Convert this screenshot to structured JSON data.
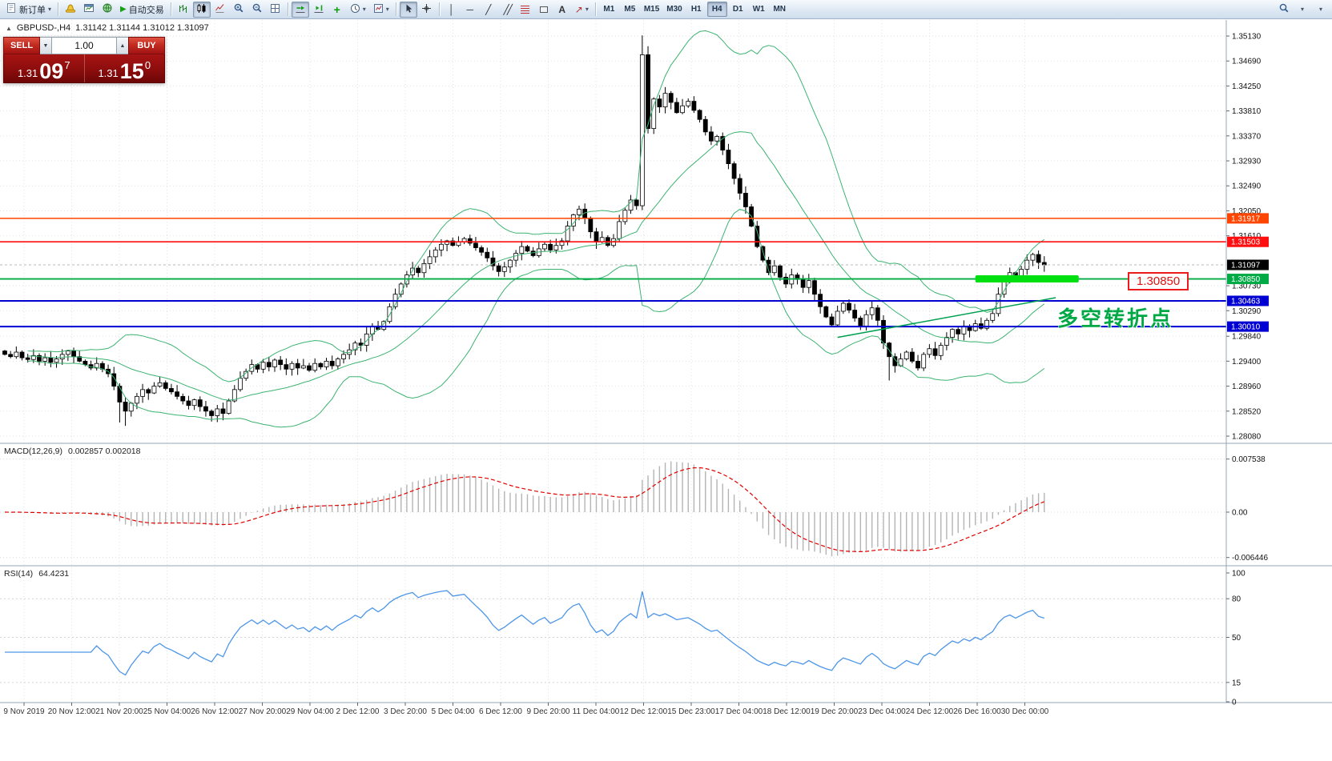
{
  "toolbar": {
    "new_order_label": "新订单",
    "autotrading_label": "自动交易",
    "timeframes": [
      "M1",
      "M5",
      "M15",
      "M30",
      "H1",
      "H4",
      "D1",
      "W1",
      "MN"
    ],
    "active_timeframe": "H4"
  },
  "trade_widget": {
    "sell_label": "SELL",
    "buy_label": "BUY",
    "lot_value": "1.00",
    "sell_price": {
      "prefix": "1.31",
      "big": "09",
      "sup": "7"
    },
    "buy_price": {
      "prefix": "1.31",
      "big": "15",
      "sup": "0"
    }
  },
  "chart_header": {
    "title": "GBPUSD-,H4",
    "ohlc": "1.31142 1.31144 1.31012 1.31097"
  },
  "annotations": {
    "support_label": "1.30850",
    "turning_point": "多空转折点"
  },
  "chart_data": {
    "type": "candlestick",
    "symbol": "GBPUSD",
    "period": "H4",
    "price_axis_ticks": [
      "1.35130",
      "1.34690",
      "1.34250",
      "1.33810",
      "1.33370",
      "1.32930",
      "1.32490",
      "1.32050",
      "1.31610",
      "1.30730",
      "1.30290",
      "1.29840",
      "1.29400",
      "1.28960",
      "1.28520",
      "1.28080"
    ],
    "current_price": {
      "value": 1.31097,
      "label": "1.31097",
      "color": "#000000"
    },
    "hlines": [
      {
        "price": 1.31917,
        "label": "1.31917",
        "color": "#ff4500",
        "width": 1.6
      },
      {
        "price": 1.31503,
        "label": "1.31503",
        "color": "#ff0f0f",
        "width": 1.6
      },
      {
        "price": 1.3085,
        "label": "1.30850",
        "color": "#00aa44",
        "width": 1.8
      },
      {
        "price": 1.30463,
        "label": "1.30463",
        "color": "#0000d2",
        "width": 2
      },
      {
        "price": 1.3001,
        "label": "1.30010",
        "color": "#0000d2",
        "width": 2
      }
    ],
    "support_zone": {
      "price": 1.3085,
      "from_index": 169,
      "to_index": 187,
      "color": "#00e010"
    },
    "trendline": {
      "i1": 145,
      "p1": 1.2982,
      "i2": 183,
      "p2": 1.3052,
      "color": "#00a050"
    },
    "bollinger": {
      "period": 20,
      "deviation": 2,
      "color": "#3cb371"
    },
    "candles": {
      "first_open": 1.2958,
      "closes": [
        1.2952,
        1.2948,
        1.2956,
        1.2946,
        1.2943,
        1.295,
        1.294,
        1.2946,
        1.2938,
        1.2944,
        1.2952,
        1.2958,
        1.2948,
        1.294,
        1.2934,
        1.2928,
        1.2936,
        1.2926,
        1.2918,
        1.2896,
        1.2868,
        1.2852,
        1.2866,
        1.2878,
        1.289,
        1.2884,
        1.2896,
        1.2902,
        1.2892,
        1.2886,
        1.2878,
        1.287,
        1.2862,
        1.2872,
        1.286,
        1.2852,
        1.2844,
        1.2856,
        1.2848,
        1.287,
        1.289,
        1.291,
        1.2922,
        1.2934,
        1.2926,
        1.2938,
        1.293,
        1.2942,
        1.2934,
        1.2926,
        1.2936,
        1.2928,
        1.2932,
        1.2924,
        1.2936,
        1.293,
        1.294,
        1.2932,
        1.2944,
        1.2952,
        1.296,
        1.2972,
        1.2968,
        1.2988,
        1.3002,
        1.2996,
        1.301,
        1.3036,
        1.3058,
        1.3076,
        1.3092,
        1.3104,
        1.3096,
        1.3112,
        1.3124,
        1.3136,
        1.3146,
        1.3152,
        1.3144,
        1.315,
        1.3156,
        1.3148,
        1.314,
        1.3132,
        1.3122,
        1.3108,
        1.3098,
        1.3106,
        1.3118,
        1.313,
        1.3142,
        1.3134,
        1.3126,
        1.3138,
        1.3146,
        1.3136,
        1.3144,
        1.3152,
        1.3178,
        1.3198,
        1.3208,
        1.3192,
        1.3168,
        1.315,
        1.3158,
        1.3144,
        1.3156,
        1.3186,
        1.3206,
        1.3224,
        1.3214,
        1.348,
        1.335,
        1.3402,
        1.3388,
        1.3412,
        1.3396,
        1.3378,
        1.339,
        1.3398,
        1.3382,
        1.3366,
        1.3344,
        1.3328,
        1.3336,
        1.3312,
        1.3288,
        1.3262,
        1.3236,
        1.3212,
        1.3178,
        1.3142,
        1.3118,
        1.3096,
        1.3108,
        1.3088,
        1.3076,
        1.3092,
        1.3084,
        1.307,
        1.3082,
        1.3058,
        1.3036,
        1.3018,
        1.3004,
        1.3028,
        1.3042,
        1.303,
        1.3016,
        1.3002,
        1.3022,
        1.3034,
        1.3012,
        1.2972,
        1.2948,
        1.2932,
        1.2944,
        1.2956,
        1.294,
        1.2928,
        1.2952,
        1.2962,
        1.295,
        1.2968,
        1.2982,
        1.2996,
        1.2988,
        1.3002,
        1.2994,
        1.3006,
        1.2998,
        1.3012,
        1.3024,
        1.3058,
        1.3084,
        1.3096,
        1.3088,
        1.3102,
        1.3118,
        1.3128,
        1.3114,
        1.31097
      ],
      "wick_overrides": {
        "20": {
          "low": 1.2832
        },
        "21": {
          "low": 1.2826
        },
        "111": {
          "high": 1.3514
        },
        "112": {
          "high": 1.3495
        },
        "154": {
          "low": 1.2906
        }
      }
    },
    "macd": {
      "label": "MACD(12,26,9)",
      "values_text": "0.002857 0.002018",
      "axis_labels": [
        "0.007538",
        "0.00",
        "-0.006446"
      ],
      "fast": 12,
      "slow": 26,
      "signal": 9,
      "histogram_color": "#b4b4b4",
      "signal_color": "#e00000"
    },
    "rsi": {
      "label": "RSI(14)",
      "value_text": "64.4231",
      "period": 14,
      "levels": [
        "100",
        "80",
        "50",
        "15",
        "0"
      ],
      "line_color": "#4d96e8"
    },
    "date_labels": [
      "9 Nov 2019",
      "20 Nov 12:00",
      "21 Nov 20:00",
      "25 Nov 04:00",
      "26 Nov 12:00",
      "27 Nov 20:00",
      "29 Nov 04:00",
      "2 Dec 12:00",
      "3 Dec 20:00",
      "5 Dec 04:00",
      "6 Dec 12:00",
      "9 Dec 20:00",
      "11 Dec 04:00",
      "12 Dec 12:00",
      "15 Dec 23:00",
      "17 Dec 04:00",
      "18 Dec 12:00",
      "19 Dec 20:00",
      "23 Dec 04:00",
      "24 Dec 12:00",
      "26 Dec 16:00",
      "30 Dec 00:00"
    ]
  }
}
